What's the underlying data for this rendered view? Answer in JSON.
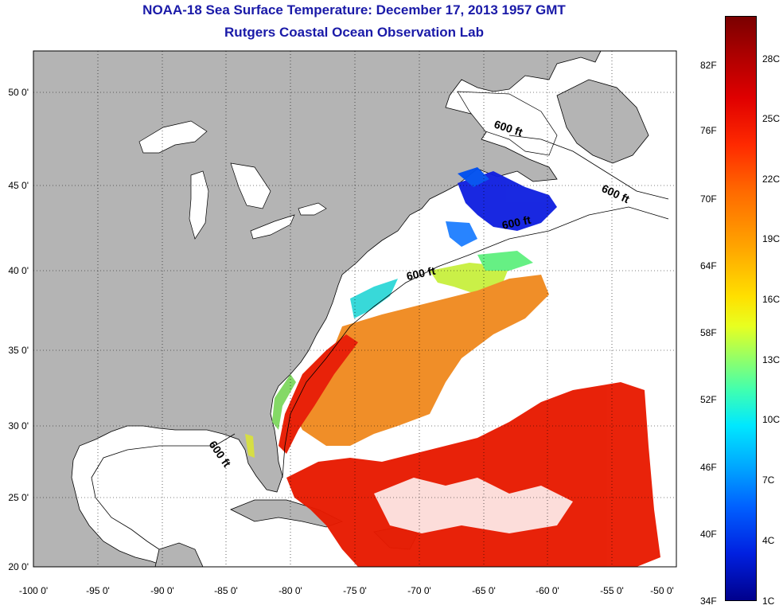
{
  "title_line1": "NOAA-18 Sea Surface Temperature:  December 17, 2013 1957 GMT",
  "title_line2": "Rutgers Coastal Ocean Observation Lab",
  "lat_ticks": [
    "50 0'",
    "45 0'",
    "40 0'",
    "35 0'",
    "30 0'",
    "25 0'",
    "20 0'"
  ],
  "lon_ticks": [
    "-100 0'",
    "-95 0'",
    "-90 0'",
    "-85 0'",
    "-80 0'",
    "-75 0'",
    "-70 0'",
    "-65 0'",
    "-60 0'",
    "-55 0'",
    "-50 0'"
  ],
  "depth_label": "600 ft",
  "colorbar": {
    "fahrenheit": [
      "82F",
      "76F",
      "70F",
      "64F",
      "58F",
      "52F",
      "46F",
      "40F",
      "34F"
    ],
    "celsius": [
      "28C",
      "25C",
      "22C",
      "19C",
      "16C",
      "13C",
      "10C",
      "7C",
      "4C",
      "1C"
    ]
  },
  "colors": {
    "land": "#b4b4b4",
    "ocean": "#ffffff",
    "title": "#1a1aa8",
    "warm": "#e81a00",
    "orange": "#f08a20",
    "cold": "#1020e0"
  }
}
